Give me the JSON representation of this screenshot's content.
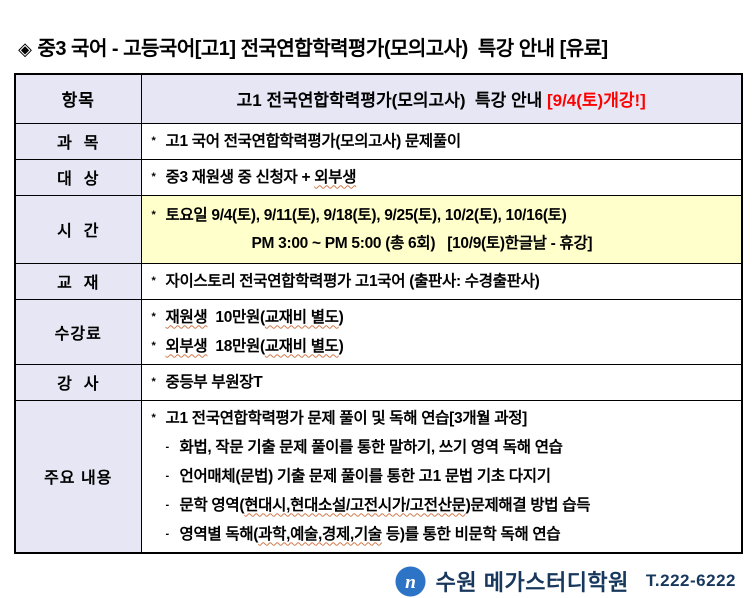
{
  "title": {
    "diamond_icon": "◈",
    "text": "중3 국어 - 고등국어[고1] 전국연합학력평가(모의고사)  특강 안내 [유료]"
  },
  "table": {
    "header": {
      "col1": "항목",
      "col2_main": "고1 전국연합학력평가(모의고사)  특강 안내 ",
      "col2_highlight": "[9/4(토)개강!]"
    },
    "rows": [
      {
        "label": "과  목",
        "lines": [
          {
            "bullet": "*",
            "parts": [
              {
                "t": "고1 국어 전국연합학력평가(모의고사) 문제풀이"
              }
            ]
          }
        ]
      },
      {
        "label": "대  상",
        "lines": [
          {
            "bullet": "*",
            "parts": [
              {
                "t": "중3 재원생 중 신청자 + "
              },
              {
                "t": "외부생",
                "wavy": true
              }
            ]
          }
        ]
      },
      {
        "label": "시  간",
        "bg": "yellow",
        "lines": [
          {
            "bullet": "*",
            "parts": [
              {
                "t": "토요일 9/4(토), 9/11(토), 9/18(토), 9/25(토), 10/2(토), 10/16(토)"
              }
            ]
          },
          {
            "bullet": "",
            "indent": true,
            "parts": [
              {
                "t": "PM 3:00 ~ PM 5:00 (총 6회)   [10/9(토)한글날 - 휴강]"
              }
            ]
          }
        ]
      },
      {
        "label": "교  재",
        "lines": [
          {
            "bullet": "*",
            "parts": [
              {
                "t": "자이스토리 전국연합학력평가 고1국어 (출판사: 수경출판사)"
              }
            ]
          }
        ]
      },
      {
        "label": "수강료",
        "lines": [
          {
            "bullet": "*",
            "parts": [
              {
                "t": "재원생",
                "wavy": true
              },
              {
                "t": "  10만원("
              },
              {
                "t": "교재비 별도",
                "wavy": true
              },
              {
                "t": ")"
              }
            ]
          },
          {
            "bullet": "*",
            "parts": [
              {
                "t": "외부생",
                "wavy": true
              },
              {
                "t": "  18만원("
              },
              {
                "t": "교재비 별도",
                "wavy": true
              },
              {
                "t": ")"
              }
            ]
          }
        ]
      },
      {
        "label": "강  사",
        "lines": [
          {
            "bullet": "*",
            "parts": [
              {
                "t": "중등부 부원장T"
              }
            ]
          }
        ]
      },
      {
        "label": "주요 내용",
        "lines": [
          {
            "bullet": "*",
            "parts": [
              {
                "t": "고1 전국연합학력평가 문제 풀이 및 독해 연습[3개월 과정]"
              }
            ]
          },
          {
            "bullet": "-",
            "parts": [
              {
                "t": "화법, 작문 기출 문제 풀이를 통한 말하기, 쓰기 영역 독해 연습"
              }
            ]
          },
          {
            "bullet": "-",
            "parts": [
              {
                "t": "언어매체(문법) 기출 문제 풀이를 통한 고1 문법 기초 다지기"
              }
            ]
          },
          {
            "bullet": "-",
            "parts": [
              {
                "t": "문학 영역("
              },
              {
                "t": "현대시,현대소설/고전시가/고전산문",
                "wavy": true
              },
              {
                "t": ")문제해결 방법 습득"
              }
            ]
          },
          {
            "bullet": "-",
            "parts": [
              {
                "t": "영역별 독해("
              },
              {
                "t": "과학,예술,경제,기술",
                "wavy": true
              },
              {
                "t": " 등)를 통한 비문학 독해 연습"
              }
            ]
          }
        ]
      }
    ]
  },
  "footer": {
    "logo_letter": "n",
    "academy_name": "수원 메가스터디학원",
    "phone": "T.222-6222"
  },
  "colors": {
    "label_bg": "#e7e6f4",
    "time_row_bg": "#ffffcc",
    "highlight_red": "#ff0000",
    "navy_text": "#17375d",
    "logo_blue": "#2e74c6",
    "border": "#000000"
  }
}
